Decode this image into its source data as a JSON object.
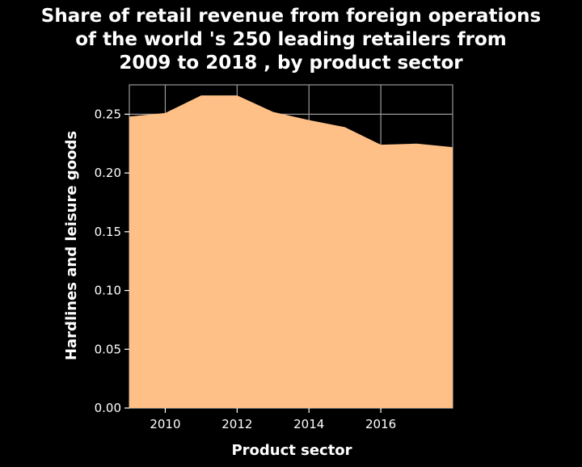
{
  "chart_data": {
    "type": "area",
    "title_lines": [
      "Share of retail revenue from foreign operations",
      "of the world 's 250 leading retailers from",
      "2009 to 2018 , by product sector"
    ],
    "xlabel": "Product sector",
    "ylabel": "Hardlines and leisure goods",
    "x": [
      2009,
      2010,
      2011,
      2012,
      2013,
      2014,
      2015,
      2016,
      2017,
      2018
    ],
    "series": [
      {
        "values": [
          0.248,
          0.251,
          0.266,
          0.266,
          0.252,
          0.245,
          0.239,
          0.224,
          0.225,
          0.222
        ]
      }
    ],
    "xlim": [
      2009,
      2018
    ],
    "ylim": [
      0,
      0.275
    ],
    "xticks": [
      2010,
      2012,
      2014,
      2016
    ],
    "xtick_labels": [
      "2010",
      "2012",
      "2014",
      "2016"
    ],
    "yticks": [
      0,
      0.05,
      0.1,
      0.15,
      0.2,
      0.25
    ],
    "ytick_labels": [
      "0.00",
      "0.05",
      "0.10",
      "0.15",
      "0.20",
      "0.25"
    ],
    "grid": true,
    "colors": {
      "fill": "#ffc087",
      "background": "#000000",
      "grid": "#9a9a9a",
      "text": "#ffffff"
    }
  }
}
